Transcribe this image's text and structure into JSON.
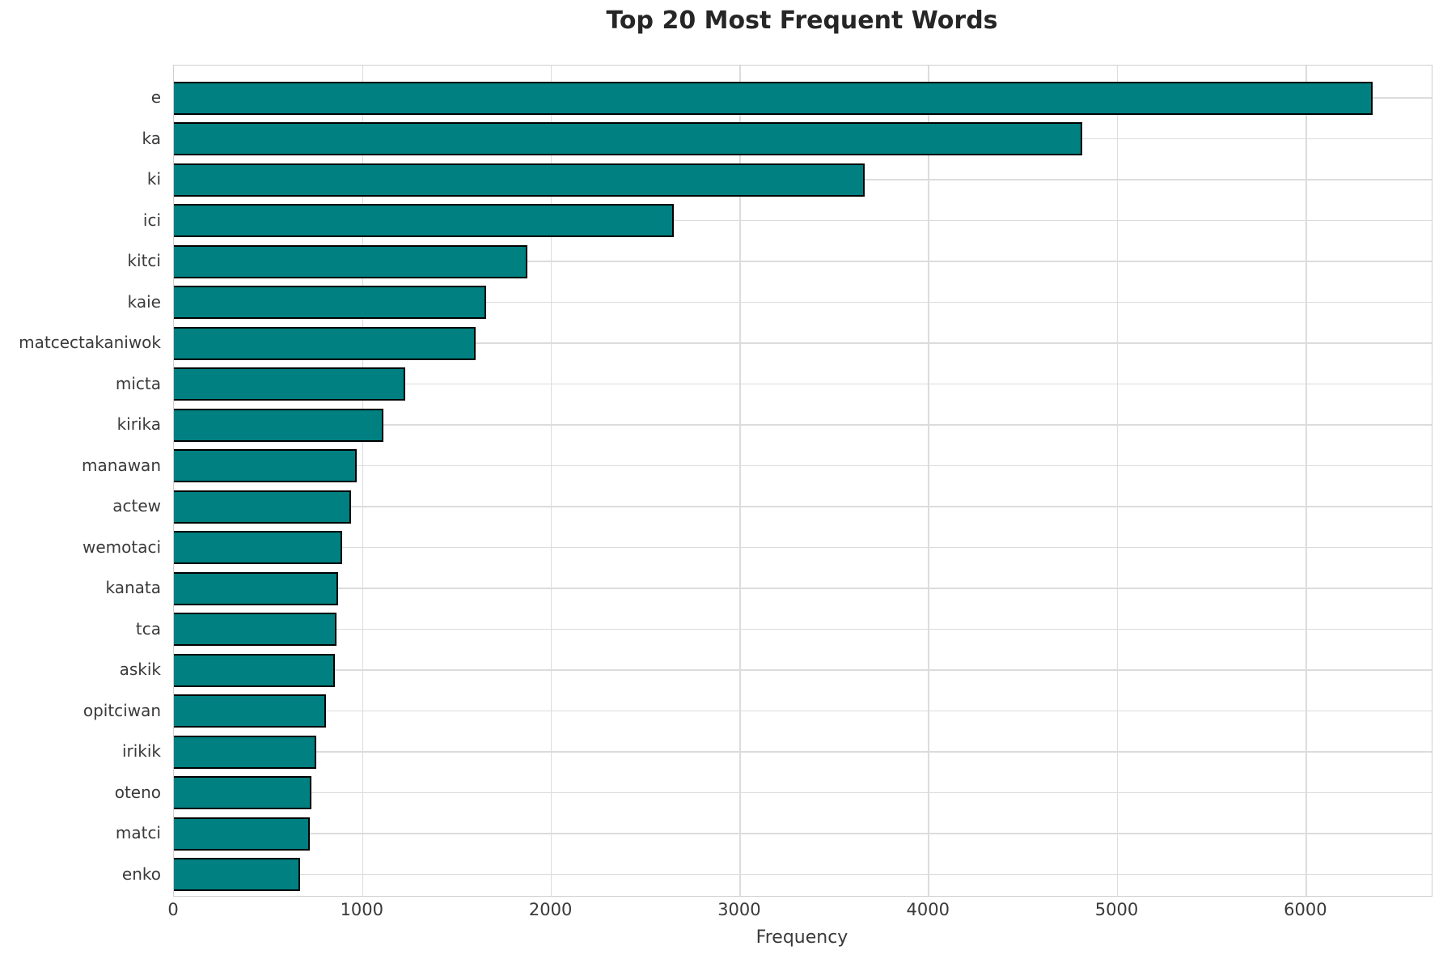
{
  "chart_data": {
    "type": "bar",
    "orientation": "horizontal",
    "title": "Top 20 Most Frequent Words",
    "xlabel": "Frequency",
    "ylabel": "",
    "categories": [
      "e",
      "ka",
      "ki",
      "ici",
      "kitci",
      "kaie",
      "matcectakaniwok",
      "micta",
      "kirika",
      "manawan",
      "actew",
      "wemotaci",
      "kanata",
      "tca",
      "askik",
      "opitciwan",
      "irikik",
      "oteno",
      "matci",
      "enko"
    ],
    "values": [
      6350,
      4815,
      3660,
      2650,
      1875,
      1655,
      1600,
      1225,
      1110,
      970,
      940,
      890,
      870,
      860,
      855,
      805,
      755,
      730,
      720,
      670
    ],
    "xlim": [
      0,
      6665
    ],
    "xticks": [
      0,
      1000,
      2000,
      3000,
      4000,
      5000,
      6000
    ],
    "grid": true,
    "legend_position": "none",
    "colors": {
      "bar": "#008080",
      "bar_edge": "#000000",
      "grid": "#dcdcdc",
      "spine": "#cfcfcf",
      "tick_label": "#3a3a3a",
      "title": "#262626"
    }
  }
}
